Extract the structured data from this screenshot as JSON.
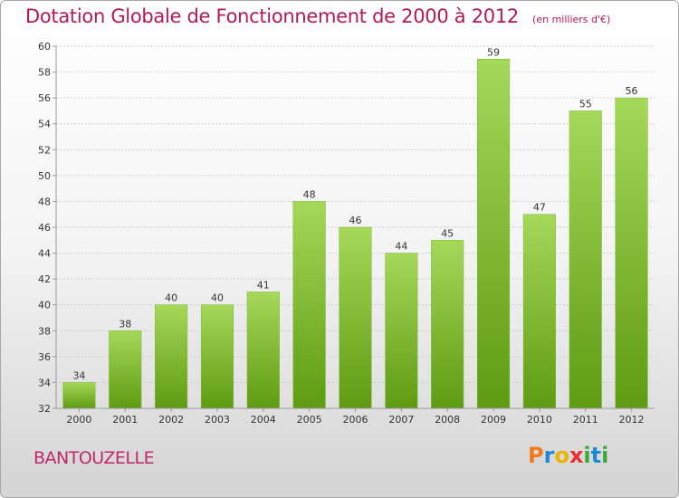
{
  "title": "Dotation Globale de Fonctionnement de 2000 à 2012",
  "subtitle": "(en milliers d'€)",
  "commune": "BANTOUZELLE",
  "logo": {
    "letters": [
      "P",
      "r",
      "o",
      "x",
      "i",
      "t",
      "i"
    ],
    "colors": [
      "#f07a1a",
      "#1e88d8",
      "#e8b400",
      "#e83030",
      "#3aaa35",
      "#1e88d8",
      "#3aaa35"
    ]
  },
  "colors": {
    "bar_light": "#a6d85a",
    "bar_dark": "#5e9b12",
    "grid": "#cccccc",
    "axis": "#999999"
  },
  "chart_data": {
    "type": "bar",
    "categories": [
      "2000",
      "2001",
      "2002",
      "2003",
      "2004",
      "2005",
      "2006",
      "2007",
      "2008",
      "2009",
      "2010",
      "2011",
      "2012"
    ],
    "values": [
      34,
      38,
      40,
      40,
      41,
      48,
      46,
      44,
      45,
      59,
      47,
      55,
      56
    ],
    "ylim": [
      32,
      60
    ],
    "yticks": [
      32,
      34,
      36,
      38,
      40,
      42,
      44,
      46,
      48,
      50,
      52,
      54,
      56,
      58,
      60
    ],
    "grid": true,
    "xlabel": "",
    "ylabel": ""
  }
}
